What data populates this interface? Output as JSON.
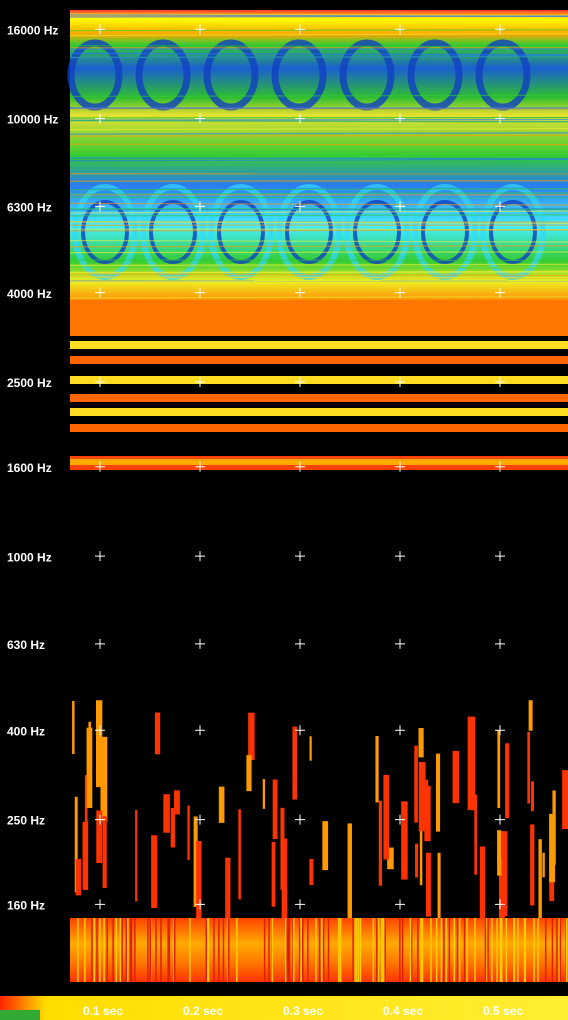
{
  "chart_data": {
    "type": "spectrogram",
    "log_scale_y": true,
    "ylim": [
      88,
      17700
    ],
    "xlim": [
      0.07,
      0.568
    ],
    "yticks": [
      {
        "value": 16000,
        "label": "16000 Hz"
      },
      {
        "value": 10000,
        "label": "10000 Hz"
      },
      {
        "value": 6300,
        "label": "6300 Hz"
      },
      {
        "value": 4000,
        "label": "4000 Hz"
      },
      {
        "value": 2500,
        "label": "2500 Hz"
      },
      {
        "value": 1600,
        "label": "1600 Hz"
      },
      {
        "value": 1000,
        "label": "1000 Hz"
      },
      {
        "value": 630,
        "label": "630 Hz"
      },
      {
        "value": 400,
        "label": "400 Hz"
      },
      {
        "value": 250,
        "label": "250 Hz"
      },
      {
        "value": 160,
        "label": "160 Hz"
      }
    ],
    "xticks": [
      {
        "value": 0.1,
        "label": "0.1 sec"
      },
      {
        "value": 0.2,
        "label": "0.2 sec"
      },
      {
        "value": 0.3,
        "label": "0.3 sec"
      },
      {
        "value": 0.4,
        "label": "0.4 sec"
      },
      {
        "value": 0.5,
        "label": "0.5 sec"
      }
    ],
    "grid": "crosses"
  }
}
